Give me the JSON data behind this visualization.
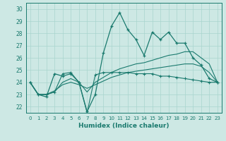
{
  "xlabel": "Humidex (Indice chaleur)",
  "ylabel": "",
  "bg_color": "#cde8e4",
  "grid_color": "#a8d5ce",
  "line_color": "#1a7a6e",
  "xlim": [
    -0.5,
    23.5
  ],
  "ylim": [
    21.5,
    30.5
  ],
  "xticks": [
    0,
    1,
    2,
    3,
    4,
    5,
    6,
    7,
    8,
    9,
    10,
    11,
    12,
    13,
    14,
    15,
    16,
    17,
    18,
    19,
    20,
    21,
    22,
    23
  ],
  "yticks": [
    22,
    23,
    24,
    25,
    26,
    27,
    28,
    29,
    30
  ],
  "series1": [
    24.0,
    23.0,
    22.8,
    24.7,
    24.5,
    24.7,
    24.0,
    21.6,
    23.0,
    26.4,
    28.6,
    29.7,
    28.3,
    27.5,
    26.2,
    28.1,
    27.5,
    28.1,
    27.2,
    27.2,
    26.0,
    25.4,
    24.3,
    24.0
  ],
  "series2": [
    24.0,
    23.0,
    23.0,
    23.2,
    24.7,
    24.8,
    24.0,
    21.5,
    24.6,
    24.8,
    24.8,
    24.8,
    24.8,
    24.7,
    24.7,
    24.7,
    24.5,
    24.5,
    24.4,
    24.3,
    24.2,
    24.1,
    24.0,
    24.0
  ],
  "series3": [
    24.0,
    23.0,
    23.0,
    23.2,
    24.0,
    24.3,
    24.0,
    23.2,
    24.0,
    24.4,
    24.8,
    25.1,
    25.3,
    25.5,
    25.6,
    25.8,
    26.0,
    26.2,
    26.3,
    26.5,
    26.5,
    26.0,
    25.5,
    24.0
  ],
  "series4": [
    24.0,
    23.0,
    23.0,
    23.3,
    23.8,
    24.0,
    23.8,
    23.5,
    23.8,
    24.1,
    24.4,
    24.6,
    24.8,
    24.9,
    25.0,
    25.1,
    25.2,
    25.3,
    25.4,
    25.5,
    25.5,
    25.3,
    24.8,
    24.0
  ]
}
